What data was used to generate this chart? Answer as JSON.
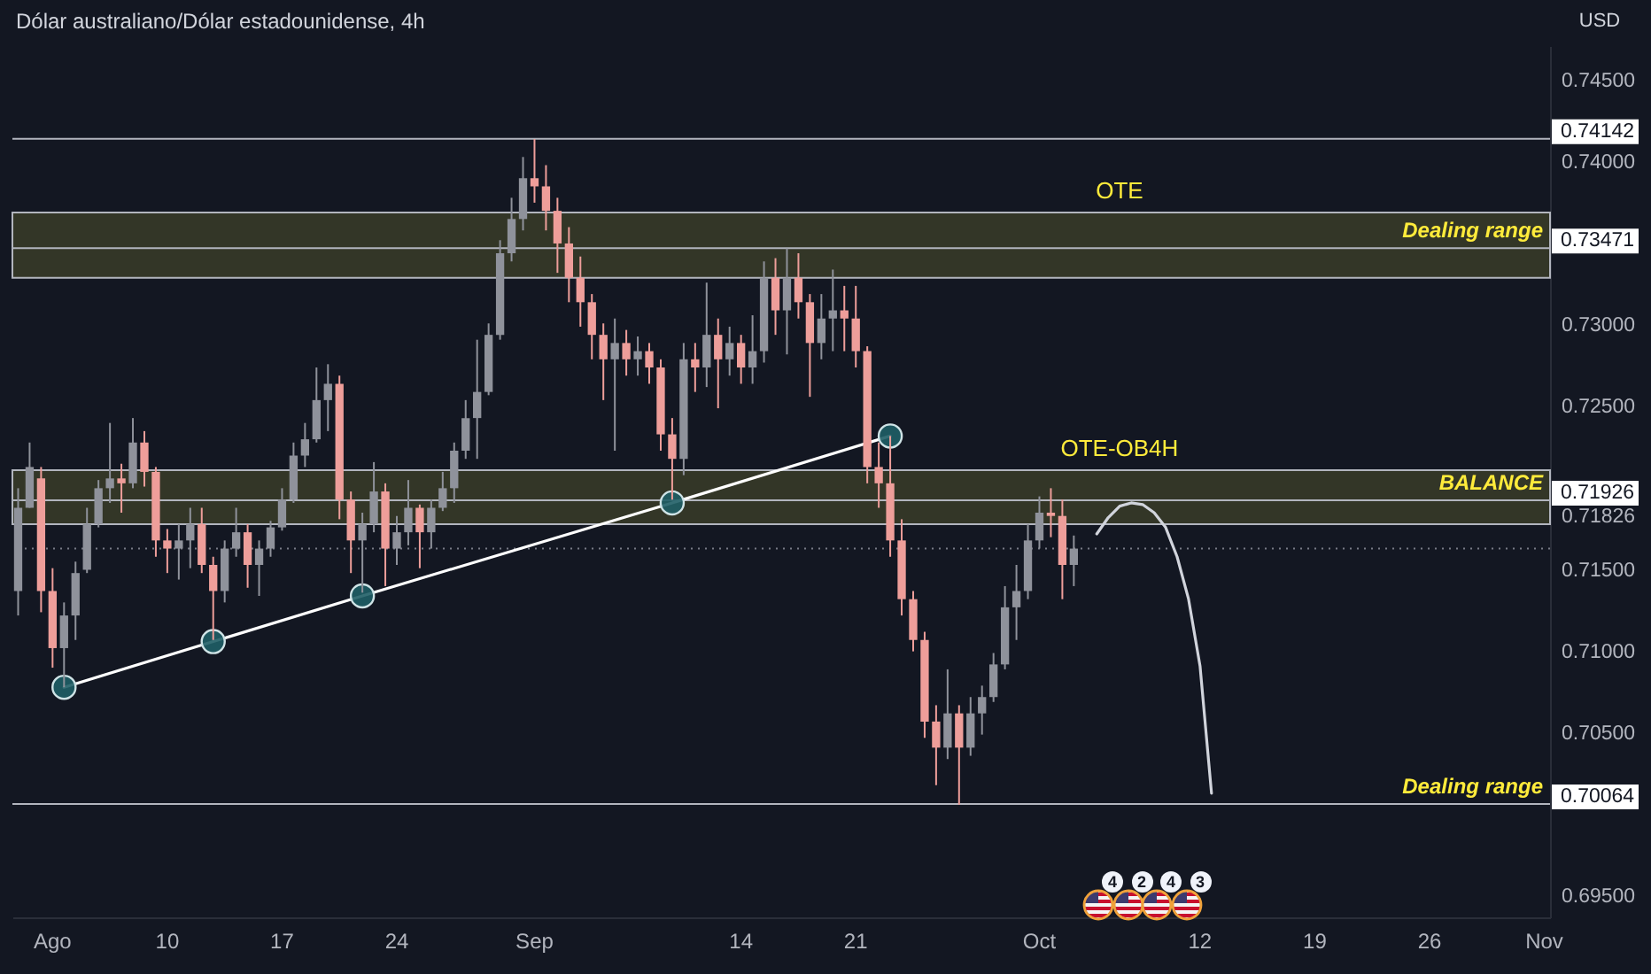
{
  "chart_data": {
    "type": "candlestick",
    "title": "Dólar australiano/Dólar estadounidense, 4h",
    "ylabel": "USD",
    "categories": [
      null,
      null,
      null,
      "Ago",
      null,
      null,
      null,
      null,
      null,
      null,
      null,
      null,
      null,
      "10",
      null,
      null,
      null,
      null,
      null,
      null,
      null,
      null,
      null,
      "17",
      null,
      null,
      null,
      null,
      null,
      null,
      null,
      null,
      null,
      "24",
      null,
      null,
      null,
      null,
      null,
      null,
      null,
      null,
      null,
      null,
      null,
      "Sep",
      null,
      null,
      null,
      null,
      null,
      null,
      null,
      null,
      null,
      null,
      null,
      null,
      null,
      null,
      null,
      null,
      null,
      "14",
      null,
      null,
      null,
      null,
      null,
      null,
      null,
      null,
      null,
      "21",
      null,
      null,
      null,
      null,
      null,
      null,
      null,
      null,
      null,
      null,
      null,
      null,
      null,
      null,
      null,
      "Oct",
      null,
      null,
      null,
      null,
      null,
      null,
      null,
      null,
      null,
      null,
      null,
      null,
      null,
      "12",
      null,
      null,
      null,
      null,
      null,
      null,
      null,
      null,
      null,
      "19",
      null,
      null,
      null,
      null,
      null,
      null,
      null,
      null,
      null,
      "26",
      null,
      null,
      null,
      null,
      null,
      null,
      null,
      null,
      null,
      "Nov"
    ],
    "ohlc": [
      [
        0.7137,
        0.72,
        0.7122,
        0.7188
      ],
      [
        0.7188,
        0.7228,
        0.7188,
        0.7213
      ],
      [
        0.7206,
        0.7213,
        0.7124,
        0.7137
      ],
      [
        0.7137,
        0.7151,
        0.709,
        0.7102
      ],
      [
        0.7102,
        0.713,
        0.7078,
        0.7122
      ],
      [
        0.7122,
        0.7155,
        0.7107,
        0.7148
      ],
      [
        0.715,
        0.7188,
        0.7148,
        0.7178
      ],
      [
        0.7178,
        0.7205,
        0.7176,
        0.72
      ],
      [
        0.72,
        0.724,
        0.7191,
        0.7206
      ],
      [
        0.7206,
        0.7215,
        0.7185,
        0.7203
      ],
      [
        0.7203,
        0.7243,
        0.72,
        0.7228
      ],
      [
        0.7228,
        0.7235,
        0.7201,
        0.721
      ],
      [
        0.721,
        0.7213,
        0.7158,
        0.7168
      ],
      [
        0.7168,
        0.7175,
        0.7148,
        0.7163
      ],
      [
        0.7163,
        0.7178,
        0.7144,
        0.7168
      ],
      [
        0.7168,
        0.7188,
        0.7151,
        0.7178
      ],
      [
        0.7178,
        0.7188,
        0.7148,
        0.7153
      ],
      [
        0.7153,
        0.7158,
        0.7107,
        0.7137
      ],
      [
        0.7137,
        0.7168,
        0.713,
        0.7163
      ],
      [
        0.7163,
        0.7188,
        0.7158,
        0.7173
      ],
      [
        0.7173,
        0.7178,
        0.7139,
        0.7153
      ],
      [
        0.7153,
        0.7168,
        0.7134,
        0.7163
      ],
      [
        0.7163,
        0.718,
        0.7158,
        0.7176
      ],
      [
        0.7176,
        0.72,
        0.7174,
        0.7193
      ],
      [
        0.7193,
        0.7228,
        0.7191,
        0.722
      ],
      [
        0.722,
        0.724,
        0.7213,
        0.723
      ],
      [
        0.723,
        0.7274,
        0.7228,
        0.7254
      ],
      [
        0.7254,
        0.7276,
        0.7235,
        0.7264
      ],
      [
        0.7264,
        0.7269,
        0.7181,
        0.7193
      ],
      [
        0.7193,
        0.7198,
        0.7148,
        0.7168
      ],
      [
        0.7168,
        0.7185,
        0.7136,
        0.7178
      ],
      [
        0.7178,
        0.7216,
        0.7173,
        0.7198
      ],
      [
        0.7198,
        0.7203,
        0.714,
        0.7163
      ],
      [
        0.7163,
        0.7183,
        0.7153,
        0.7173
      ],
      [
        0.7173,
        0.7205,
        0.7165,
        0.7188
      ],
      [
        0.7188,
        0.719,
        0.7151,
        0.7173
      ],
      [
        0.7173,
        0.7193,
        0.7163,
        0.7188
      ],
      [
        0.7188,
        0.721,
        0.7186,
        0.72
      ],
      [
        0.72,
        0.7228,
        0.7191,
        0.7223
      ],
      [
        0.7223,
        0.7254,
        0.7218,
        0.7243
      ],
      [
        0.7243,
        0.7291,
        0.7218,
        0.7259
      ],
      [
        0.7259,
        0.7301,
        0.7257,
        0.7294
      ],
      [
        0.7294,
        0.7352,
        0.7291,
        0.7344
      ],
      [
        0.7344,
        0.7378,
        0.7339,
        0.7365
      ],
      [
        0.7365,
        0.7403,
        0.7358,
        0.739
      ],
      [
        0.739,
        0.7414,
        0.7375,
        0.7385
      ],
      [
        0.7385,
        0.7398,
        0.7358,
        0.737
      ],
      [
        0.737,
        0.7378,
        0.7332,
        0.735
      ],
      [
        0.735,
        0.736,
        0.7314,
        0.7329
      ],
      [
        0.7329,
        0.7342,
        0.7299,
        0.7314
      ],
      [
        0.7314,
        0.7319,
        0.7279,
        0.7294
      ],
      [
        0.7294,
        0.7301,
        0.7254,
        0.7279
      ],
      [
        0.7279,
        0.7304,
        0.7223,
        0.7289
      ],
      [
        0.7289,
        0.7297,
        0.7269,
        0.7279
      ],
      [
        0.7279,
        0.7293,
        0.7269,
        0.7284
      ],
      [
        0.7284,
        0.7289,
        0.7264,
        0.7274
      ],
      [
        0.7274,
        0.7279,
        0.7223,
        0.7233
      ],
      [
        0.7233,
        0.7243,
        0.7193,
        0.7218
      ],
      [
        0.7218,
        0.7289,
        0.7208,
        0.7279
      ],
      [
        0.7279,
        0.7289,
        0.7259,
        0.7274
      ],
      [
        0.7274,
        0.7326,
        0.7262,
        0.7294
      ],
      [
        0.7294,
        0.7304,
        0.7249,
        0.7279
      ],
      [
        0.7279,
        0.7299,
        0.7269,
        0.7289
      ],
      [
        0.7289,
        0.7294,
        0.7264,
        0.7274
      ],
      [
        0.7274,
        0.7306,
        0.7264,
        0.7284
      ],
      [
        0.7284,
        0.7339,
        0.7277,
        0.7329
      ],
      [
        0.7329,
        0.7341,
        0.7294,
        0.7309
      ],
      [
        0.7309,
        0.7347,
        0.7282,
        0.7329
      ],
      [
        0.7329,
        0.7344,
        0.7304,
        0.7314
      ],
      [
        0.7314,
        0.7319,
        0.7256,
        0.7289
      ],
      [
        0.7289,
        0.7319,
        0.7279,
        0.7304
      ],
      [
        0.7304,
        0.7334,
        0.7284,
        0.7309
      ],
      [
        0.7309,
        0.7324,
        0.7284,
        0.7304
      ],
      [
        0.7304,
        0.7324,
        0.7274,
        0.7284
      ],
      [
        0.7284,
        0.7287,
        0.7203,
        0.7213
      ],
      [
        0.7213,
        0.7228,
        0.7188,
        0.7203
      ],
      [
        0.7203,
        0.7232,
        0.7158,
        0.7168
      ],
      [
        0.7168,
        0.7181,
        0.7122,
        0.7132
      ],
      [
        0.7132,
        0.7137,
        0.71,
        0.7107
      ],
      [
        0.7107,
        0.7112,
        0.7047,
        0.7057
      ],
      [
        0.7057,
        0.7067,
        0.7018,
        0.7041
      ],
      [
        0.7041,
        0.7089,
        0.7034,
        0.7062
      ],
      [
        0.7062,
        0.7067,
        0.7006,
        0.7041
      ],
      [
        0.7041,
        0.7072,
        0.7036,
        0.7062
      ],
      [
        0.7062,
        0.7079,
        0.7049,
        0.7072
      ],
      [
        0.7072,
        0.7099,
        0.7069,
        0.7092
      ],
      [
        0.7092,
        0.714,
        0.7089,
        0.7127
      ],
      [
        0.7127,
        0.7153,
        0.7107,
        0.7137
      ],
      [
        0.7137,
        0.7178,
        0.7132,
        0.7168
      ],
      [
        0.7168,
        0.7195,
        0.7163,
        0.7185
      ],
      [
        0.7185,
        0.72,
        0.717,
        0.7183
      ],
      [
        0.7183,
        0.7193,
        0.7132,
        0.7153
      ],
      [
        0.7153,
        0.7171,
        0.714,
        0.7163
      ],
      null,
      null,
      null,
      null,
      null,
      null,
      null,
      null,
      null,
      null,
      null,
      null,
      null,
      null,
      null,
      null,
      null,
      null,
      null,
      null,
      null,
      null,
      null,
      null,
      null,
      null,
      null,
      null,
      null,
      null,
      null,
      null,
      null,
      null,
      null,
      null,
      null,
      null,
      null,
      null,
      null
    ],
    "colors": [
      "#8f929b",
      "#8f929b",
      "#ee9e9a",
      "#ee9e9a",
      "#8f929b",
      "#8f929b",
      "#8f929b",
      "#8f929b",
      "#8f929b",
      "#ee9e9a",
      "#8f929b",
      "#ee9e9a",
      "#ee9e9a",
      "#ee9e9a",
      "#8f929b",
      "#8f929b",
      "#ee9e9a",
      "#ee9e9a",
      "#8f929b",
      "#8f929b",
      "#ee9e9a",
      "#8f929b",
      "#8f929b",
      "#8f929b",
      "#8f929b",
      "#8f929b",
      "#8f929b",
      "#8f929b",
      "#ee9e9a",
      "#ee9e9a",
      "#8f929b",
      "#8f929b",
      "#ee9e9a",
      "#8f929b",
      "#8f929b",
      "#ee9e9a",
      "#8f929b",
      "#8f929b",
      "#8f929b",
      "#8f929b",
      "#8f929b",
      "#8f929b",
      "#8f929b",
      "#8f929b",
      "#8f929b",
      "#ee9e9a",
      "#ee9e9a",
      "#ee9e9a",
      "#ee9e9a",
      "#ee9e9a",
      "#ee9e9a",
      "#ee9e9a",
      "#8f929b",
      "#ee9e9a",
      "#8f929b",
      "#ee9e9a",
      "#ee9e9a",
      "#ee9e9a",
      "#8f929b",
      "#ee9e9a",
      "#8f929b",
      "#ee9e9a",
      "#8f929b",
      "#ee9e9a",
      "#8f929b",
      "#8f929b",
      "#ee9e9a",
      "#8f929b",
      "#ee9e9a",
      "#ee9e9a",
      "#8f929b",
      "#8f929b",
      "#ee9e9a",
      "#ee9e9a",
      "#ee9e9a",
      "#ee9e9a",
      "#ee9e9a",
      "#ee9e9a",
      "#ee9e9a",
      "#ee9e9a",
      "#ee9e9a",
      "#8f929b",
      "#ee9e9a",
      "#8f929b",
      "#8f929b",
      "#8f929b",
      "#8f929b",
      "#8f929b",
      "#8f929b",
      "#8f929b",
      "#ee9e9a",
      "#ee9e9a",
      "#8f929b",
      null,
      null,
      null,
      null,
      null,
      null,
      null,
      null,
      null,
      null,
      null,
      null,
      null,
      null,
      null,
      null,
      null,
      null,
      null,
      null,
      null,
      null,
      null,
      null,
      null,
      null,
      null,
      null,
      null,
      null,
      null,
      null,
      null,
      null,
      null,
      null,
      null,
      null,
      null,
      null,
      null
    ],
    "series": [
      {
        "type": "line",
        "color": "#ffffff",
        "values": [
          null,
          null,
          null,
          null,
          0.7078,
          null,
          null,
          null,
          null,
          null,
          null,
          null,
          null,
          null,
          null,
          null,
          null,
          0.7106,
          null,
          null,
          null,
          null,
          null,
          null,
          null,
          null,
          null,
          null,
          null,
          null,
          0.7134,
          null,
          null,
          null,
          null,
          null,
          null,
          null,
          null,
          null,
          null,
          null,
          null,
          null,
          null,
          null,
          null,
          null,
          null,
          null,
          null,
          null,
          null,
          null,
          null,
          null,
          null,
          0.7191,
          null,
          null,
          null,
          null,
          null,
          null,
          null,
          null,
          null,
          null,
          null,
          null,
          null,
          null,
          null,
          null,
          null,
          null,
          0.7232,
          null,
          null,
          null,
          null,
          null,
          null,
          null,
          null,
          null,
          null,
          null,
          null,
          null,
          null,
          null,
          null,
          null,
          null,
          null,
          null,
          null,
          null,
          null,
          null,
          null,
          null,
          null,
          null,
          null,
          null,
          null,
          null,
          null,
          null,
          null,
          null,
          null,
          null,
          null,
          null,
          null,
          null,
          null,
          null,
          null,
          null,
          null,
          null,
          null,
          null,
          null,
          null,
          null,
          null,
          null,
          null,
          null
        ]
      },
      {
        "type": "scatter",
        "color": "#1f5e66",
        "values": [
          null,
          null,
          null,
          null,
          0.7078,
          null,
          null,
          null,
          null,
          null,
          null,
          null,
          null,
          null,
          null,
          null,
          null,
          0.7106,
          null,
          null,
          null,
          null,
          null,
          null,
          null,
          null,
          null,
          null,
          null,
          null,
          0.7134,
          null,
          null,
          null,
          null,
          null,
          null,
          null,
          null,
          null,
          null,
          null,
          null,
          null,
          null,
          null,
          null,
          null,
          null,
          null,
          null,
          null,
          null,
          null,
          null,
          null,
          null,
          0.7191,
          null,
          null,
          null,
          null,
          null,
          null,
          null,
          null,
          null,
          null,
          null,
          null,
          null,
          null,
          null,
          null,
          null,
          null,
          0.7232,
          null,
          null,
          null,
          null,
          null,
          null,
          null,
          null,
          null,
          null,
          null,
          null,
          null,
          null,
          null,
          null,
          null,
          null,
          null,
          null,
          null,
          null,
          null,
          null,
          null,
          null,
          null,
          null,
          null,
          null,
          null,
          null,
          null,
          null,
          null,
          null,
          null,
          null,
          null,
          null,
          null,
          null,
          null,
          null,
          null,
          null,
          null,
          null,
          null,
          null,
          null,
          null,
          null,
          null,
          null,
          null,
          null
        ]
      },
      {
        "type": "line",
        "color": "#d1d4dc",
        "values": [
          null,
          null,
          null,
          null,
          null,
          null,
          null,
          null,
          null,
          null,
          null,
          null,
          null,
          null,
          null,
          null,
          null,
          null,
          null,
          null,
          null,
          null,
          null,
          null,
          null,
          null,
          null,
          null,
          null,
          null,
          null,
          null,
          null,
          null,
          null,
          null,
          null,
          null,
          null,
          null,
          null,
          null,
          null,
          null,
          null,
          null,
          null,
          null,
          null,
          null,
          null,
          null,
          null,
          null,
          null,
          null,
          null,
          null,
          null,
          null,
          null,
          null,
          null,
          null,
          null,
          null,
          null,
          null,
          null,
          null,
          null,
          null,
          null,
          null,
          null,
          null,
          null,
          null,
          null,
          null,
          null,
          null,
          null,
          null,
          null,
          null,
          null,
          null,
          null,
          null,
          null,
          null,
          null,
          null,
          0.7172,
          0.7182,
          0.7189,
          0.7191,
          0.719,
          0.7185,
          0.7176,
          0.7158,
          0.7132,
          0.7091,
          0.7013,
          null,
          null,
          null,
          null,
          null,
          null,
          null,
          null,
          null,
          null,
          null,
          null,
          null,
          null,
          null,
          null,
          null,
          null,
          null,
          null,
          null,
          null,
          null,
          null,
          null,
          null,
          null,
          null,
          null
        ]
      }
    ],
    "ylim": [
      0.6937,
      0.7471
    ],
    "yticks": [
      {
        "value": 0.695,
        "label": "0.69500"
      },
      {
        "value": 0.70064,
        "label": "0.70064"
      },
      {
        "value": 0.705,
        "label": "0.70500"
      },
      {
        "value": 0.71,
        "label": "0.71000"
      },
      {
        "value": 0.715,
        "label": "0.71500"
      },
      {
        "value": 0.71826,
        "label": "0.71826"
      },
      {
        "value": 0.71926,
        "label": "0.71926"
      },
      {
        "value": 0.725,
        "label": "0.72500"
      },
      {
        "value": 0.73,
        "label": "0.73000"
      },
      {
        "value": 0.73471,
        "label": "0.73471"
      },
      {
        "value": 0.74,
        "label": "0.74000"
      },
      {
        "value": 0.74142,
        "label": "0.74142"
      },
      {
        "value": 0.745,
        "label": "0.74500"
      }
    ],
    "ref_lines": [
      {
        "axis": "y",
        "value": 0.74142,
        "color": "#b2b5be"
      },
      {
        "axis": "y",
        "value": 0.73471,
        "label": "Dealing range",
        "color": "#b2b5be"
      },
      {
        "axis": "y",
        "value": 0.71926,
        "label": "BALANCE",
        "color": "#b2b5be"
      },
      {
        "axis": "y",
        "value": 0.70064,
        "label": "Dealing range",
        "color": "#b2b5be"
      },
      {
        "axis": "y",
        "value": 0.7163,
        "color": "#787b86",
        "line_style": "dotted"
      }
    ],
    "bands": [
      {
        "axis": "y",
        "from": 0.7329,
        "to": 0.7369,
        "label": "OTE",
        "color": "#4a4b2c"
      },
      {
        "axis": "y",
        "from": 0.7178,
        "to": 0.7211,
        "label": "OTE-OB4H",
        "color": "#4a4b2c"
      }
    ],
    "annotations": [
      "4",
      "2",
      "4",
      "3"
    ]
  }
}
